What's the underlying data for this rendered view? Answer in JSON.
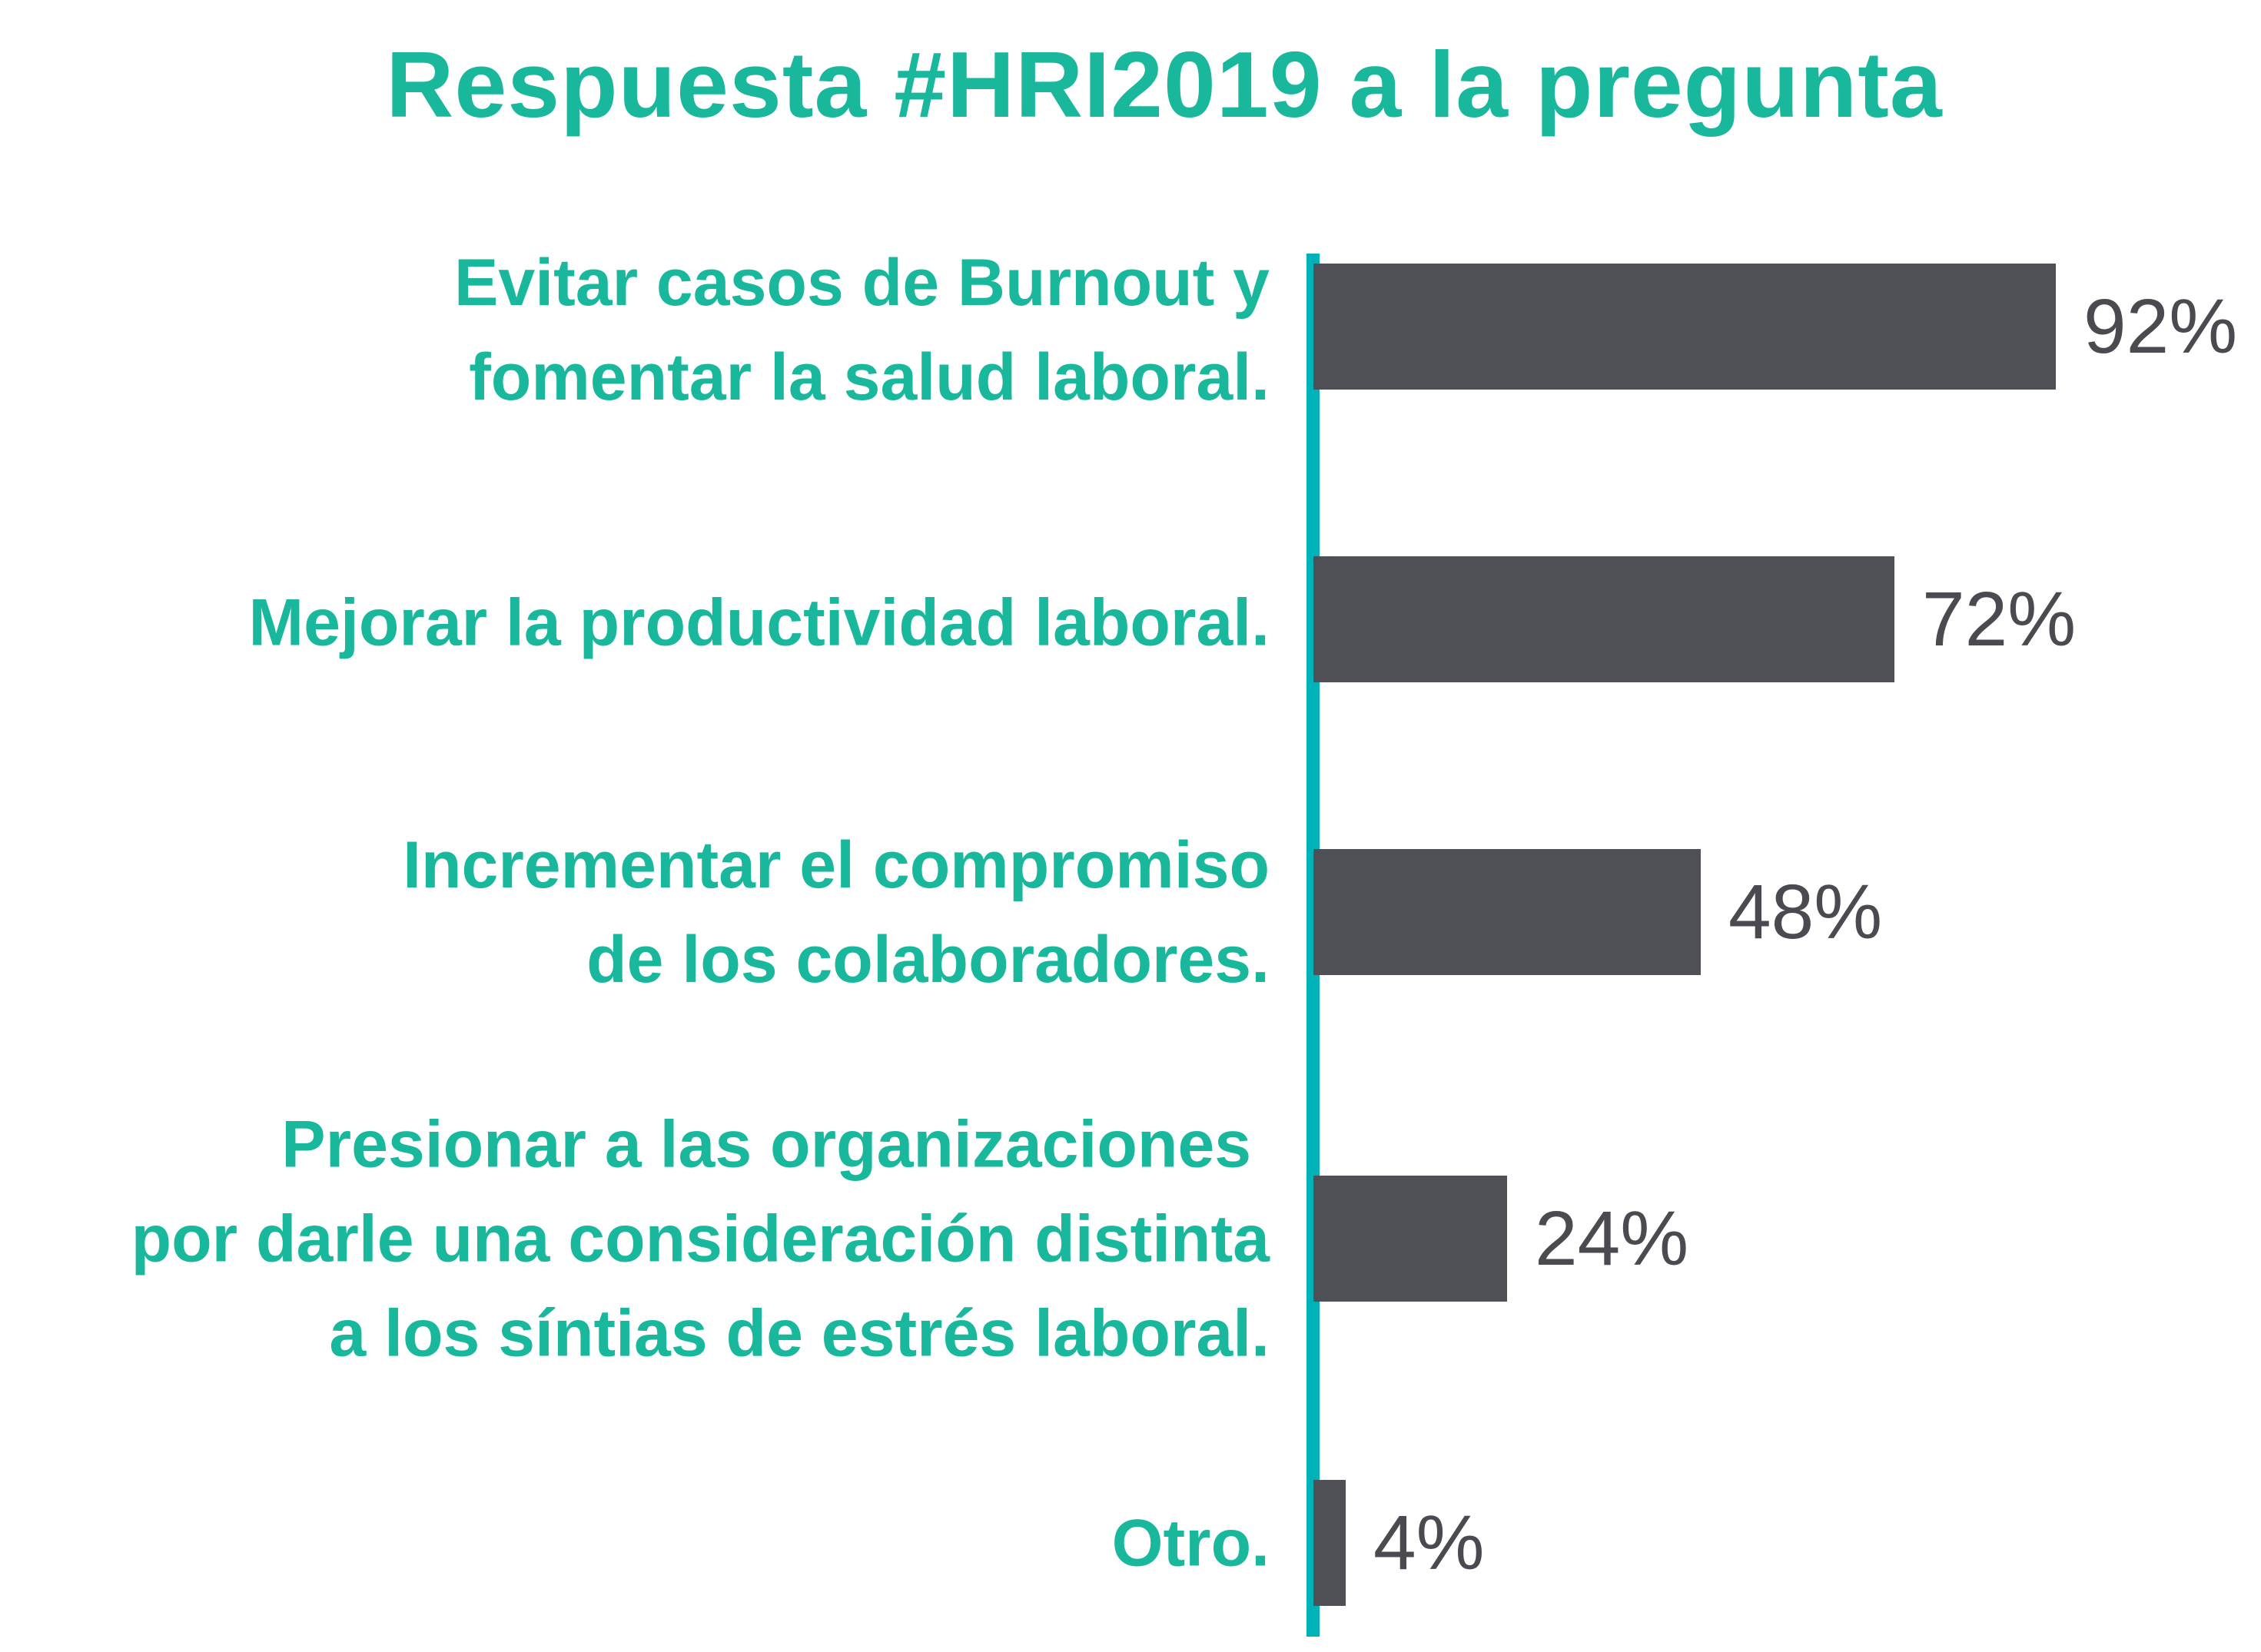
{
  "chart_data": {
    "type": "bar",
    "orientation": "horizontal",
    "title": "Respuesta #HRI2019 a la pregunta",
    "categories": [
      "Evitar casos de Burnout y\nfomentar la salud laboral.",
      "Mejorar la productividad laboral.",
      "Incrementar el compromiso\nde los colaboradores.",
      "Presionar a las organizaciones \npor darle una consideración distinta\na los síntias de estrés laboral.",
      "Otro."
    ],
    "values": [
      92,
      72,
      48,
      24,
      4
    ],
    "value_labels": [
      "92%",
      "72%",
      "48%",
      "24%",
      "4%"
    ],
    "unit": "%",
    "xlim": [
      0,
      100
    ],
    "grid": false,
    "colors": {
      "title": "#19b89d",
      "labels": "#19b89d",
      "axis": "#00b2b8",
      "bars": "#4f5055",
      "values": "#4a4a50"
    }
  }
}
